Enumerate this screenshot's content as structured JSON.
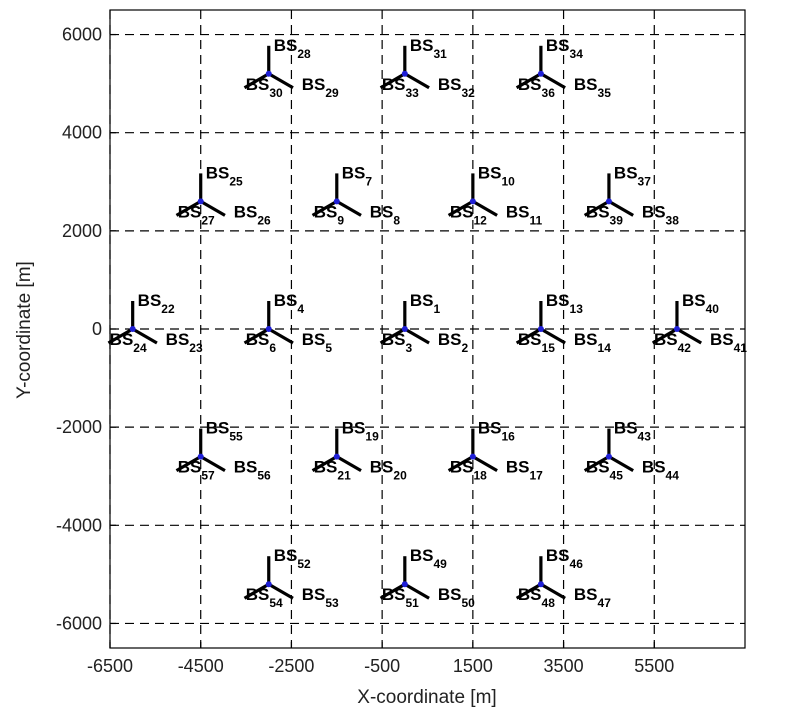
{
  "chart_data": {
    "type": "scatter",
    "xlabel": "X-coordinate [m]",
    "ylabel": "Y-coordinate [m]",
    "xlim": [
      -6500,
      7500
    ],
    "ylim": [
      -6500,
      6500
    ],
    "xticks": [
      -6500,
      -4500,
      -2500,
      -500,
      1500,
      3500,
      5500
    ],
    "yticks": [
      -6000,
      -4000,
      -2000,
      0,
      2000,
      4000,
      6000
    ],
    "grid": true,
    "grid_style": "dashed",
    "label_prefix": "BS",
    "sites": [
      {
        "x": 0,
        "y": 0,
        "sectors": [
          "1",
          "2",
          "3"
        ]
      },
      {
        "x": -3000,
        "y": 0,
        "sectors": [
          "4",
          "5",
          "6"
        ]
      },
      {
        "x": -1500,
        "y": 2600,
        "sectors": [
          "7",
          "8",
          "9"
        ]
      },
      {
        "x": 1500,
        "y": 2600,
        "sectors": [
          "10",
          "11",
          "12"
        ]
      },
      {
        "x": 3000,
        "y": 0,
        "sectors": [
          "13",
          "14",
          "15"
        ]
      },
      {
        "x": 1500,
        "y": -2600,
        "sectors": [
          "16",
          "17",
          "18"
        ]
      },
      {
        "x": -1500,
        "y": -2600,
        "sectors": [
          "19",
          "20",
          "21"
        ]
      },
      {
        "x": -6000,
        "y": 0,
        "sectors": [
          "22",
          "23",
          "24"
        ]
      },
      {
        "x": -4500,
        "y": 2600,
        "sectors": [
          "25",
          "26",
          "27"
        ]
      },
      {
        "x": -3000,
        "y": 5200,
        "sectors": [
          "28",
          "29",
          "30"
        ]
      },
      {
        "x": 0,
        "y": 5200,
        "sectors": [
          "31",
          "32",
          "33"
        ]
      },
      {
        "x": 3000,
        "y": 5200,
        "sectors": [
          "34",
          "35",
          "36"
        ]
      },
      {
        "x": 4500,
        "y": 2600,
        "sectors": [
          "37",
          "38",
          "39"
        ]
      },
      {
        "x": 6000,
        "y": 0,
        "sectors": [
          "40",
          "41",
          "42"
        ]
      },
      {
        "x": 4500,
        "y": -2600,
        "sectors": [
          "43",
          "44",
          "45"
        ]
      },
      {
        "x": 3000,
        "y": -5200,
        "sectors": [
          "46",
          "47",
          "48"
        ]
      },
      {
        "x": 0,
        "y": -5200,
        "sectors": [
          "49",
          "50",
          "51"
        ]
      },
      {
        "x": -3000,
        "y": -5200,
        "sectors": [
          "52",
          "53",
          "54"
        ]
      },
      {
        "x": -4500,
        "y": -2600,
        "sectors": [
          "55",
          "56",
          "57"
        ]
      }
    ]
  }
}
